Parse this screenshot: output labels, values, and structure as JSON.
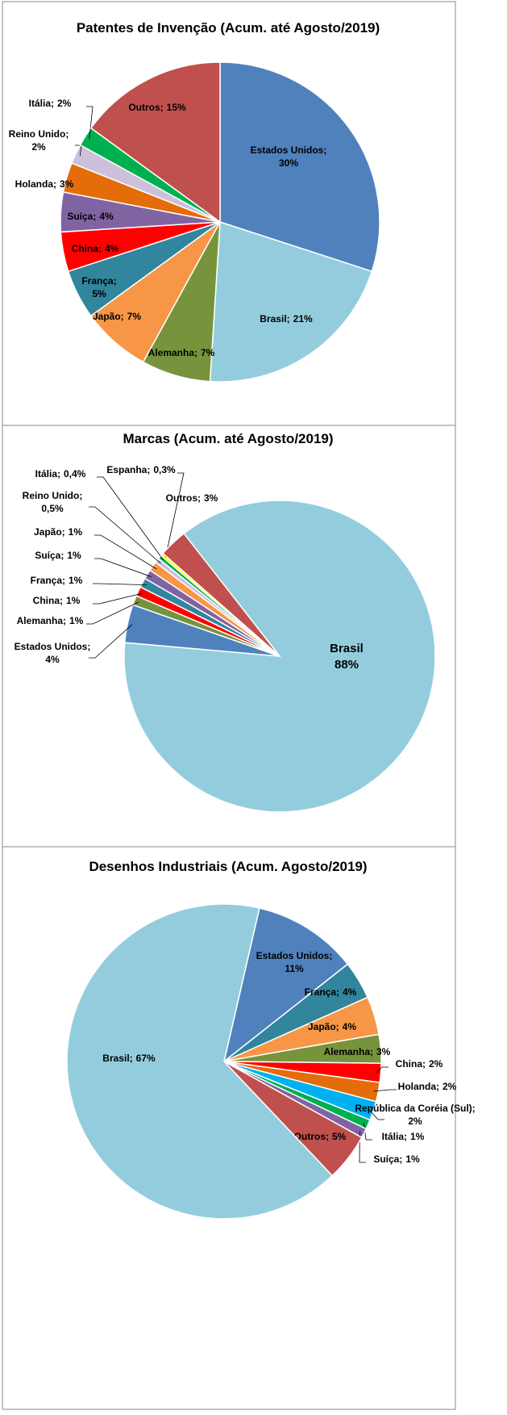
{
  "chart_data": [
    {
      "type": "pie",
      "title": "Patentes de Invenção (Acum. até Agosto/2019)",
      "label_separator": ";",
      "categories": [
        "Estados Unidos",
        "Brasil",
        "Alemanha",
        "Japão",
        "França",
        "China",
        "Suíça",
        "Holanda",
        "Reino Unido",
        "Itália",
        "Outros"
      ],
      "values": [
        30,
        21,
        7,
        7,
        5,
        4,
        4,
        3,
        2,
        2,
        15
      ],
      "value_labels": [
        "30%",
        "21%",
        "7%",
        "7%",
        "5%",
        "4%",
        "4%",
        "3%",
        "2%",
        "2%",
        "15%"
      ],
      "colors": [
        "#4f81bd",
        "#93cddd",
        "#77933c",
        "#f79646",
        "#31859c",
        "#ff0000",
        "#8064a2",
        "#e46c0a",
        "#ccc0da",
        "#00b050",
        "#c0504d"
      ]
    },
    {
      "type": "pie",
      "title": "Marcas (Acum. até Agosto/2019)",
      "label_separator": ";",
      "categories": [
        "Brasil",
        "Estados Unidos",
        "Alemanha",
        "China",
        "França",
        "Suíça",
        "Japão",
        "Reino Unido",
        "Itália",
        "Espanha",
        "Outros"
      ],
      "values": [
        88,
        4,
        1,
        1,
        1,
        1,
        1,
        0.5,
        0.4,
        0.3,
        3
      ],
      "value_labels": [
        "88%",
        "4%",
        "1%",
        "1%",
        "1%",
        "1%",
        "1%",
        "0,5%",
        "0,4%",
        "0,3%",
        "3%"
      ],
      "colors": [
        "#93cddd",
        "#4f81bd",
        "#77933c",
        "#ff0000",
        "#31859c",
        "#8064a2",
        "#f79646",
        "#ccc0da",
        "#00b050",
        "#ffff00",
        "#c0504d"
      ]
    },
    {
      "type": "pie",
      "title": "Desenhos Industriais (Acum. Agosto/2019)",
      "label_separator": ";",
      "categories": [
        "Estados Unidos",
        "França",
        "Japão",
        "Alemanha",
        "China",
        "Holanda",
        "República da Coréia (Sul)",
        "Itália",
        "Suíça",
        "Outros",
        "Brasil"
      ],
      "values": [
        11,
        4,
        4,
        3,
        2,
        2,
        2,
        1,
        1,
        5,
        67
      ],
      "value_labels": [
        "11%",
        "4%",
        "4%",
        "3%",
        "2%",
        "2%",
        "2%",
        "1%",
        "1%",
        "5%",
        "67%"
      ],
      "colors": [
        "#4f81bd",
        "#31859c",
        "#f79646",
        "#77933c",
        "#ff0000",
        "#e46c0a",
        "#00b0f0",
        "#00b050",
        "#8064a2",
        "#c0504d",
        "#93cddd"
      ]
    }
  ]
}
